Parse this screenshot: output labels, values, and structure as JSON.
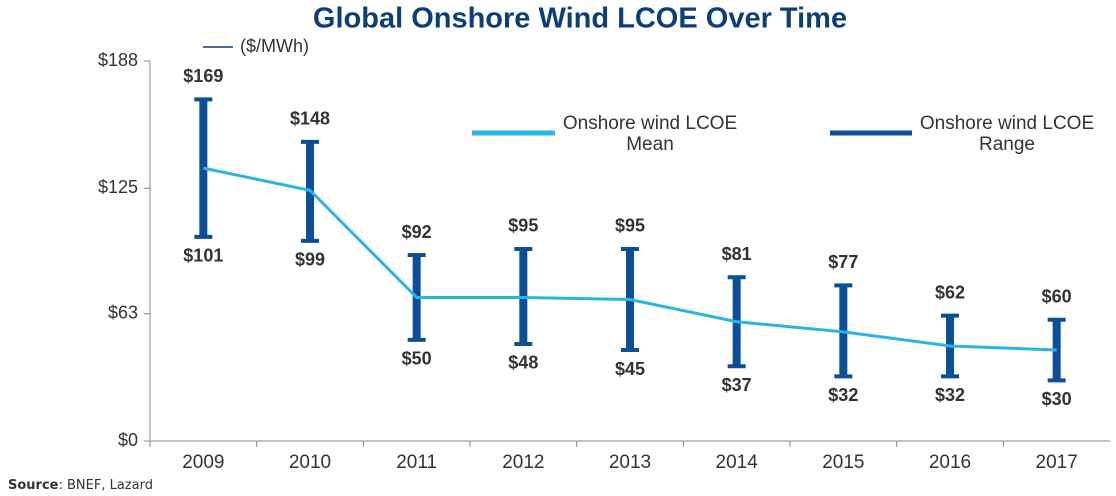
{
  "chart_data": {
    "type": "line_range",
    "title": "Global Onshore Wind LCOE Over Time",
    "subtitle": "($/MWh)",
    "categories": [
      "2009",
      "2010",
      "2011",
      "2012",
      "2013",
      "2014",
      "2015",
      "2016",
      "2017"
    ],
    "series": [
      {
        "name": "Onshore wind LCOE Mean",
        "color": "#2bb5e4",
        "values": [
          135,
          124,
          71,
          71,
          70,
          59,
          54,
          47,
          45
        ]
      },
      {
        "name": "Onshore wind LCOE Range",
        "color": "#0b4f98",
        "high": [
          169,
          148,
          92,
          95,
          95,
          81,
          77,
          62,
          60
        ],
        "high_labels": [
          "$169",
          "$148",
          "$92",
          "$95",
          "$95",
          "$81",
          "$77",
          "$62",
          "$60"
        ],
        "low": [
          101,
          99,
          50,
          48,
          45,
          37,
          32,
          32,
          30
        ],
        "low_labels": [
          "$101",
          "$99",
          "$50",
          "$48",
          "$45",
          "$37",
          "$32",
          "$32",
          "$30"
        ]
      }
    ],
    "ylim": [
      0,
      188
    ],
    "yticks": [
      {
        "value": 0,
        "label": "$0"
      },
      {
        "value": 63,
        "label": "$63"
      },
      {
        "value": 125,
        "label": "$125"
      },
      {
        "value": 188,
        "label": "$188"
      }
    ],
    "source": {
      "label": "Source",
      "text": ": BNEF, Lazard"
    }
  }
}
